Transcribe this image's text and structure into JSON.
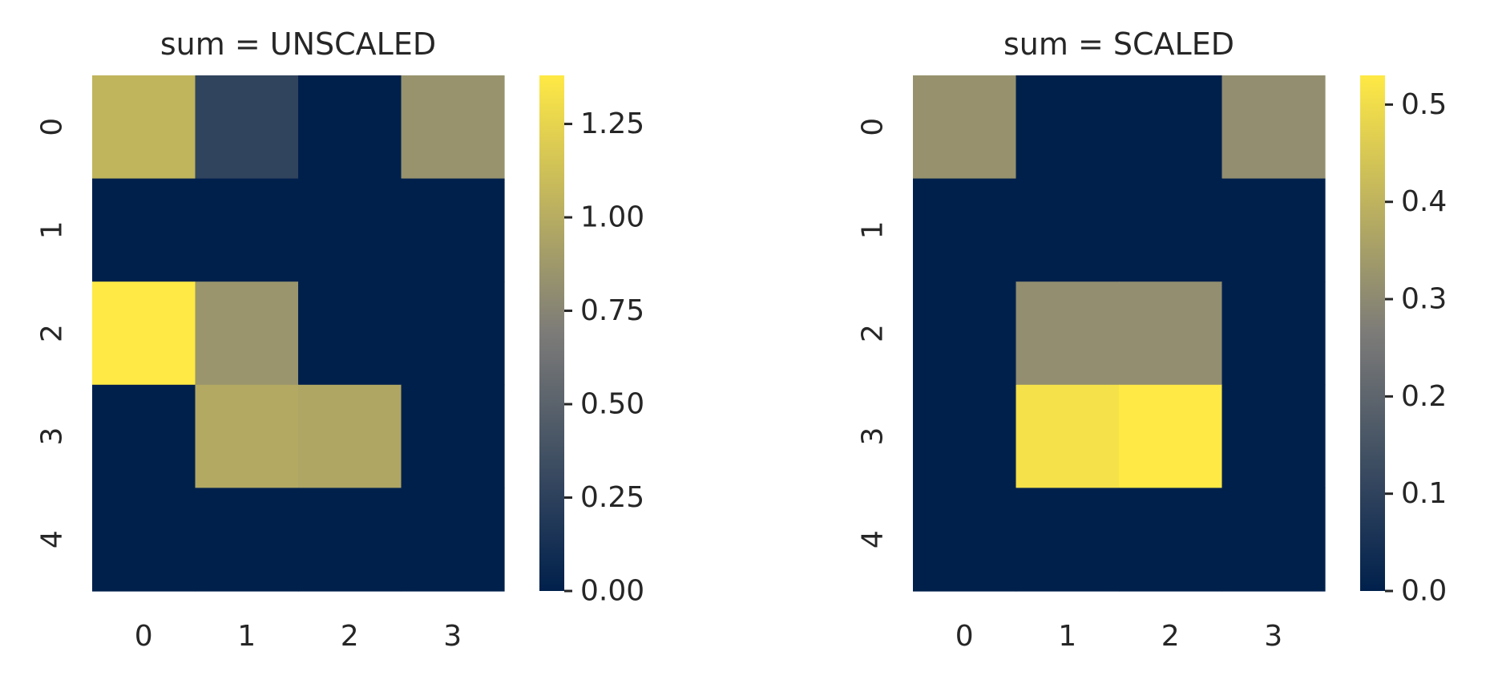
{
  "figure": {
    "background": "#ffffff",
    "text_color": "#262626"
  },
  "colormap": {
    "name": "cividis",
    "stops": [
      "#00204c",
      "#7c7b78",
      "#ffe945"
    ]
  },
  "chart_data": [
    {
      "type": "heatmap",
      "title": "sum = UNSCALED",
      "xticklabels": [
        "0",
        "1",
        "2",
        "3"
      ],
      "yticklabels": [
        "0",
        "1",
        "2",
        "3",
        "4"
      ],
      "values": [
        [
          1.05,
          0.27,
          0.0,
          0.84
        ],
        [
          0.0,
          0.0,
          0.0,
          0.0
        ],
        [
          1.38,
          0.85,
          0.0,
          0.0
        ],
        [
          0.0,
          0.98,
          0.96,
          0.0
        ],
        [
          0.0,
          0.0,
          0.0,
          0.0
        ]
      ],
      "vmin": 0.0,
      "vmax": 1.38,
      "colorbar": {
        "ticks": [
          0.0,
          0.25,
          0.5,
          0.75,
          1.0,
          1.25
        ],
        "ticklabels": [
          "0.00",
          "0.25",
          "0.50",
          "0.75",
          "1.00",
          "1.25"
        ]
      }
    },
    {
      "type": "heatmap",
      "title": "sum = SCALED",
      "xticklabels": [
        "0",
        "1",
        "2",
        "3"
      ],
      "yticklabels": [
        "0",
        "1",
        "2",
        "3",
        "4"
      ],
      "values": [
        [
          0.32,
          0.0,
          0.0,
          0.31
        ],
        [
          0.0,
          0.0,
          0.0,
          0.0
        ],
        [
          0.0,
          0.31,
          0.31,
          0.0
        ],
        [
          0.0,
          0.51,
          0.53,
          0.0
        ],
        [
          0.0,
          0.0,
          0.0,
          0.0
        ]
      ],
      "vmin": 0.0,
      "vmax": 0.53,
      "colorbar": {
        "ticks": [
          0.0,
          0.1,
          0.2,
          0.3,
          0.4,
          0.5
        ],
        "ticklabels": [
          "0.0",
          "0.1",
          "0.2",
          "0.3",
          "0.4",
          "0.5"
        ]
      }
    }
  ]
}
